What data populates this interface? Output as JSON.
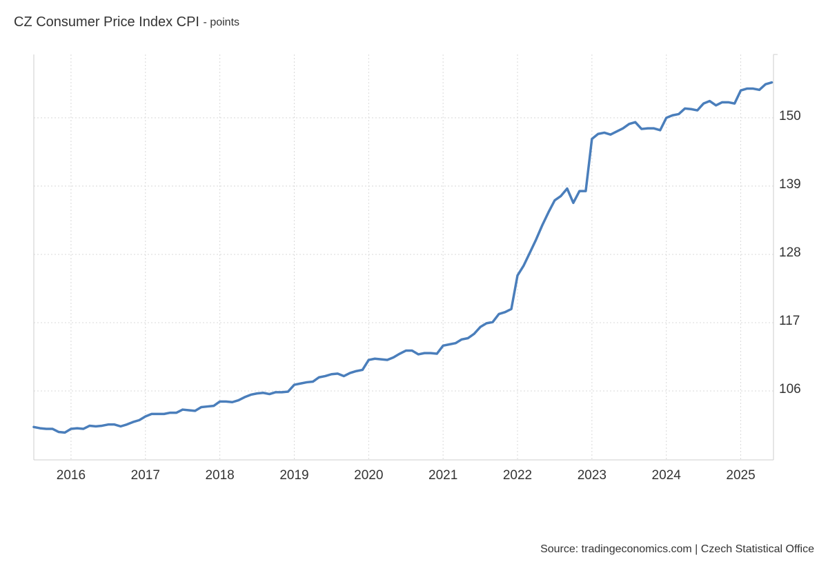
{
  "chart_data": {
    "type": "line",
    "title": "CZ Consumer Price Index CPI",
    "subtitle": "- points",
    "source": "Source: tradingeconomics.com | Czech Statistical Office",
    "x": [
      2015.5,
      2015.583,
      2015.667,
      2015.75,
      2015.833,
      2015.917,
      2016,
      2016.083,
      2016.167,
      2016.25,
      2016.333,
      2016.417,
      2016.5,
      2016.583,
      2016.667,
      2016.75,
      2016.833,
      2016.917,
      2017,
      2017.083,
      2017.167,
      2017.25,
      2017.333,
      2017.417,
      2017.5,
      2017.583,
      2017.667,
      2017.75,
      2017.833,
      2017.917,
      2018,
      2018.083,
      2018.167,
      2018.25,
      2018.333,
      2018.417,
      2018.5,
      2018.583,
      2018.667,
      2018.75,
      2018.833,
      2018.917,
      2019,
      2019.083,
      2019.167,
      2019.25,
      2019.333,
      2019.417,
      2019.5,
      2019.583,
      2019.667,
      2019.75,
      2019.833,
      2019.917,
      2020,
      2020.083,
      2020.167,
      2020.25,
      2020.333,
      2020.417,
      2020.5,
      2020.583,
      2020.667,
      2020.75,
      2020.833,
      2020.917,
      2021,
      2021.083,
      2021.167,
      2021.25,
      2021.333,
      2021.417,
      2021.5,
      2021.583,
      2021.667,
      2021.75,
      2021.833,
      2021.917,
      2022,
      2022.083,
      2022.167,
      2022.25,
      2022.333,
      2022.417,
      2022.5,
      2022.583,
      2022.667,
      2022.75,
      2022.833,
      2022.917,
      2023,
      2023.083,
      2023.167,
      2023.25,
      2023.333,
      2023.417,
      2023.5,
      2023.583,
      2023.667,
      2023.75,
      2023.833,
      2023.917,
      2024,
      2024.083,
      2024.167,
      2024.25,
      2024.333,
      2024.417,
      2024.5,
      2024.583,
      2024.667,
      2024.75,
      2024.833,
      2024.917,
      2025,
      2025.083,
      2025.167,
      2025.25,
      2025.333,
      2025.417
    ],
    "series": [
      {
        "name": "CPI",
        "color": "#4a7ebb",
        "values": [
          100.2,
          100.0,
          99.9,
          99.9,
          99.4,
          99.3,
          99.9,
          100.0,
          99.9,
          100.4,
          100.3,
          100.4,
          100.6,
          100.6,
          100.3,
          100.6,
          101.0,
          101.3,
          101.9,
          102.3,
          102.3,
          102.3,
          102.5,
          102.5,
          103.0,
          102.9,
          102.8,
          103.4,
          103.5,
          103.6,
          104.3,
          104.3,
          104.2,
          104.5,
          105.0,
          105.4,
          105.6,
          105.7,
          105.5,
          105.8,
          105.8,
          105.9,
          107.0,
          107.2,
          107.4,
          107.5,
          108.2,
          108.4,
          108.7,
          108.8,
          108.4,
          108.9,
          109.2,
          109.4,
          111.0,
          111.2,
          111.1,
          111.0,
          111.4,
          112.0,
          112.5,
          112.5,
          111.9,
          112.1,
          112.1,
          112.0,
          113.3,
          113.5,
          113.7,
          114.3,
          114.5,
          115.2,
          116.3,
          116.9,
          117.1,
          118.4,
          118.7,
          119.2,
          124.6,
          126.2,
          128.3,
          130.4,
          132.7,
          134.8,
          136.7,
          137.4,
          138.6,
          136.3,
          138.2,
          138.2,
          146.6,
          147.4,
          147.6,
          147.3,
          147.8,
          148.3,
          149.0,
          149.3,
          148.2,
          148.3,
          148.3,
          148.0,
          150.0,
          150.4,
          150.6,
          151.5,
          151.4,
          151.2,
          152.3,
          152.7,
          152.0,
          152.5,
          152.5,
          152.3,
          154.4,
          154.7,
          154.7,
          154.5,
          155.4,
          155.7
        ]
      }
    ],
    "xlim": [
      2015.5,
      2025.44
    ],
    "xticks": [
      2016,
      2017,
      2018,
      2019,
      2020,
      2021,
      2022,
      2023,
      2024,
      2025
    ],
    "ylim": [
      94.9,
      160.2
    ],
    "yticks": [
      106,
      117,
      128,
      139,
      150
    ],
    "grid": true
  }
}
